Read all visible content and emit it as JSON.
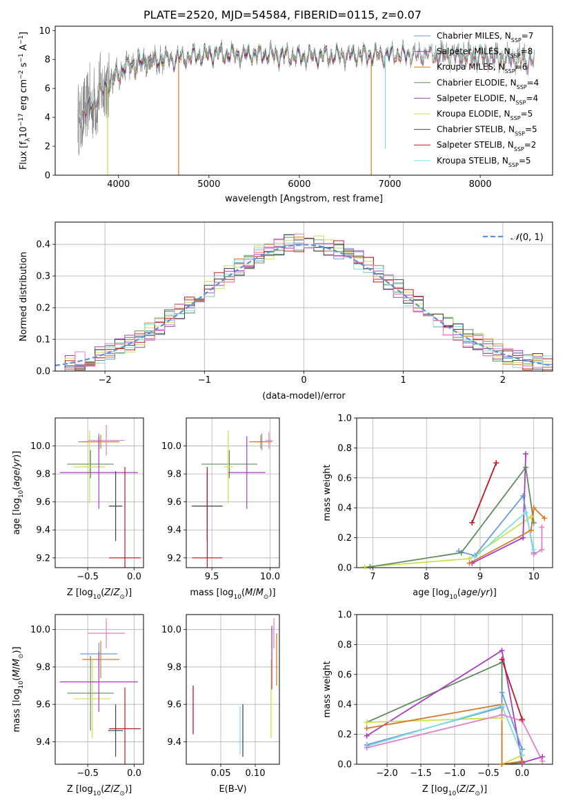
{
  "figure": {
    "title": "PLATE=2520, MJD=54584, FIBERID=0115, z=0.07"
  },
  "colors": {
    "Chabrier MILES": "#6a9bd6",
    "Salpeter MILES": "#a23bb7",
    "Kroupa MILES": "#d9762a",
    "Chabrier ELODIE": "#5f8a5f",
    "Salpeter ELODIE": "#a93bbf",
    "Kroupa ELODIE": "#c8e04a",
    "Chabrier STELIB": "#444444",
    "Salpeter STELIB": "#c0141c",
    "Kroupa STELIB": "#7ee0e0",
    "pink": "#e37fc6",
    "data": "#7f7f7f",
    "normal": "#5b8fd6"
  },
  "chart_data": [
    {
      "id": "spectrum",
      "type": "line",
      "xlabel": "wavelength [Angstrom, rest frame]",
      "ylabel": "Flux [f_λ10^-17 erg cm^-2 s^-1 A^-1]",
      "xlim": [
        3300,
        8800
      ],
      "ylim": [
        0,
        10.3
      ],
      "xticks": [
        4000,
        5000,
        6000,
        7000,
        8000
      ],
      "yticks": [
        0,
        2,
        4,
        6,
        8,
        10
      ],
      "legend_position": "top-right",
      "legend": [
        {
          "base": "Chabrier MILES, N",
          "sub": "SSP",
          "tail": "=7"
        },
        {
          "base": "Salpeter MILES, N",
          "sub": "SSP",
          "tail": "=8"
        },
        {
          "base": "Kroupa MILES, N",
          "sub": "SSP",
          "tail": "=6"
        },
        {
          "base": "Chabrier ELODIE, N",
          "sub": "SSP",
          "tail": "=4"
        },
        {
          "base": "Salpeter ELODIE, N",
          "sub": "SSP",
          "tail": "=4"
        },
        {
          "base": "Kroupa ELODIE, N",
          "sub": "SSP",
          "tail": "=5"
        },
        {
          "base": "Chabrier STELIB, N",
          "sub": "SSP",
          "tail": "=5"
        },
        {
          "base": "Salpeter STELIB, N",
          "sub": "SSP",
          "tail": "=2"
        },
        {
          "base": "Kroupa STELIB, N",
          "sub": "SSP",
          "tail": "=5"
        }
      ],
      "continuum": {
        "x": [
          3550,
          3650,
          3750,
          3850,
          3950,
          4050,
          4150,
          4300,
          4500,
          4700,
          4900,
          5100,
          5300,
          5600,
          6000,
          6500,
          7000,
          7500,
          8000,
          8500,
          8800
        ],
        "y": [
          3.8,
          4.6,
          5.2,
          6.2,
          6.6,
          7.4,
          7.6,
          7.9,
          8.0,
          8.1,
          8.3,
          8.4,
          8.3,
          8.4,
          8.2,
          8.3,
          8.3,
          8.4,
          8.2,
          8.0,
          7.9
        ]
      }
    },
    {
      "id": "residuals",
      "type": "area",
      "xlabel": "(data-model)/error",
      "ylabel": "Normed distribution",
      "xlim": [
        -2.5,
        2.5
      ],
      "ylim": [
        0,
        0.47
      ],
      "xticks": [
        -2,
        -1,
        0,
        1,
        2
      ],
      "yticks": [
        0.0,
        0.1,
        0.2,
        0.3,
        0.4
      ],
      "grid": true,
      "legend_position": "top-right",
      "legend_label": "N(0,1)",
      "bins": [
        -2.5,
        2.5,
        50
      ]
    },
    {
      "id": "age-vs-Z",
      "type": "scatter",
      "xlabel": "Z [log10(Z/Z⊙)]",
      "ylabel": "age [log10(age/yr)]",
      "xlim": [
        -0.85,
        0.1
      ],
      "ylim": [
        9.13,
        10.2
      ],
      "xticks": [
        -0.5,
        0.0
      ],
      "yticks": [
        9.2,
        9.4,
        9.6,
        9.8,
        10.0
      ],
      "grid": true,
      "points": [
        {
          "s": "Chabrier MILES",
          "x": -0.38,
          "y": 10.03,
          "xe": 0.22,
          "ye": 0.06
        },
        {
          "s": "Kroupa MILES",
          "x": -0.36,
          "y": 10.03,
          "xe": 0.2,
          "ye": 0.05
        },
        {
          "s": "pink",
          "x": -0.3,
          "y": 10.04,
          "xe": 0.2,
          "ye": 0.11
        },
        {
          "s": "Chabrier ELODIE",
          "x": -0.47,
          "y": 9.87,
          "xe": 0.25,
          "ye": 0.1
        },
        {
          "s": "Kroupa ELODIE",
          "x": -0.48,
          "y": 9.85,
          "xe": 0.17,
          "ye": 0.26
        },
        {
          "s": "Salpeter ELODIE",
          "x": -0.38,
          "y": 9.81,
          "xe": 0.42,
          "ye": 0.26
        },
        {
          "s": "Kroupa STELIB",
          "x": -0.2,
          "y": 9.57,
          "xe": 0.08,
          "ye": 0.25
        },
        {
          "s": "Chabrier STELIB",
          "x": -0.2,
          "y": 9.57,
          "xe": 0.07,
          "ye": 0.25
        },
        {
          "s": "Salpeter STELIB",
          "x": -0.1,
          "y": 9.2,
          "xe": 0.17,
          "ye": 0.65
        }
      ]
    },
    {
      "id": "age-vs-mass",
      "type": "scatter",
      "xlabel": "mass [log10(M/M⊙)]",
      "xlim": [
        9.28,
        10.08
      ],
      "ylim": [
        9.13,
        10.2
      ],
      "xticks": [
        9.5,
        10.0
      ],
      "yticks": [
        9.2,
        9.4,
        9.6,
        9.8,
        10.0
      ],
      "grid": true,
      "points": [
        {
          "s": "Chabrier MILES",
          "x": 9.93,
          "y": 10.03,
          "xe": 0.08,
          "ye": 0.06
        },
        {
          "s": "Kroupa MILES",
          "x": 9.92,
          "y": 10.03,
          "xe": 0.1,
          "ye": 0.05
        },
        {
          "s": "pink",
          "x": 9.99,
          "y": 10.04,
          "xe": 0.03,
          "ye": 0.06
        },
        {
          "s": "Chabrier ELODIE",
          "x": 9.65,
          "y": 9.87,
          "xe": 0.24,
          "ye": 0.1
        },
        {
          "s": "Kroupa ELODIE",
          "x": 9.64,
          "y": 9.85,
          "xe": 0.04,
          "ye": 0.26
        },
        {
          "s": "Salpeter ELODIE",
          "x": 9.8,
          "y": 9.81,
          "xe": 0.16,
          "ye": 0.26
        },
        {
          "s": "Kroupa STELIB",
          "x": 9.46,
          "y": 9.57,
          "xe": 0.14,
          "ye": 0.25
        },
        {
          "s": "Chabrier STELIB",
          "x": 9.46,
          "y": 9.57,
          "xe": 0.13,
          "ye": 0.25
        },
        {
          "s": "Salpeter STELIB",
          "x": 9.46,
          "y": 9.2,
          "xe": 0.13,
          "ye": 0.65
        }
      ]
    },
    {
      "id": "massweight-vs-age",
      "type": "line",
      "xlabel": "age [log10(age/yr)]",
      "ylabel": "mass weight",
      "xlim": [
        6.7,
        10.35
      ],
      "ylim": [
        0,
        1.0
      ],
      "xticks": [
        7,
        8,
        9,
        10
      ],
      "yticks": [
        0.0,
        0.2,
        0.4,
        0.6,
        0.8,
        1.0
      ],
      "grid": true,
      "series": [
        {
          "s": "Kroupa ELODIE",
          "x": [
            6.85,
            8.8,
            9.95
          ],
          "y": [
            0.005,
            0.06,
            0.34
          ]
        },
        {
          "s": "Chabrier ELODIE",
          "x": [
            6.95,
            8.65,
            9.85,
            10.0
          ],
          "y": [
            0.005,
            0.1,
            0.67,
            0.3
          ]
        },
        {
          "s": "Salpeter ELODIE",
          "x": [
            8.85,
            9.8,
            9.85
          ],
          "y": [
            0.03,
            0.2,
            0.76
          ]
        },
        {
          "s": "Kroupa MILES",
          "x": [
            8.8,
            9.95,
            10.0,
            10.2
          ],
          "y": [
            0.03,
            0.25,
            0.4,
            0.33
          ]
        },
        {
          "s": "Chabrier MILES",
          "x": [
            8.6,
            8.9,
            9.8,
            10.0
          ],
          "y": [
            0.11,
            0.08,
            0.48,
            0.1
          ]
        },
        {
          "s": "Kroupa STELIB",
          "x": [
            8.9,
            9.85,
            10.0
          ],
          "y": [
            0.07,
            0.37,
            0.12
          ]
        },
        {
          "s": "Salpeter STELIB",
          "x": [
            8.85,
            9.3
          ],
          "y": [
            0.3,
            0.7
          ]
        },
        {
          "s": "pink",
          "x": [
            10.0,
            10.15,
            10.15
          ],
          "y": [
            0.09,
            0.12,
            0.27
          ]
        }
      ]
    },
    {
      "id": "mass-vs-Z",
      "type": "scatter",
      "xlabel": "Z [log10(Z/Z⊙)]",
      "ylabel": "mass [log10(M/M⊙)]",
      "xlim": [
        -0.85,
        0.1
      ],
      "ylim": [
        9.28,
        10.08
      ],
      "xticks": [
        -0.5,
        0.0
      ],
      "yticks": [
        9.4,
        9.6,
        9.8,
        10.0
      ],
      "grid": true,
      "points": [
        {
          "s": "Chabrier MILES",
          "x": -0.38,
          "y": 9.87,
          "xe": 0.2,
          "ye": 0.06
        },
        {
          "s": "Kroupa MILES",
          "x": -0.36,
          "y": 9.84,
          "xe": 0.2,
          "ye": 0.1
        },
        {
          "s": "pink",
          "x": -0.3,
          "y": 9.98,
          "xe": 0.2,
          "ye": 0.08
        },
        {
          "s": "Chabrier ELODIE",
          "x": -0.47,
          "y": 9.66,
          "xe": 0.25,
          "ye": 0.2
        },
        {
          "s": "Kroupa ELODIE",
          "x": -0.45,
          "y": 9.63,
          "xe": 0.2,
          "ye": 0.21
        },
        {
          "s": "Salpeter ELODIE",
          "x": -0.38,
          "y": 9.72,
          "xe": 0.42,
          "ye": 0.16
        },
        {
          "s": "Kroupa STELIB",
          "x": -0.2,
          "y": 9.46,
          "xe": 0.08,
          "ye": 0.13
        },
        {
          "s": "Chabrier STELIB",
          "x": -0.2,
          "y": 9.46,
          "xe": 0.08,
          "ye": 0.14
        },
        {
          "s": "Salpeter STELIB",
          "x": -0.1,
          "y": 9.47,
          "xe": 0.17,
          "ye": 0.22
        }
      ]
    },
    {
      "id": "mass-vs-EBV",
      "type": "scatter",
      "xlabel": "E(B-V)",
      "xlim": [
        0.0,
        0.135
      ],
      "ylim": [
        9.28,
        10.08
      ],
      "xticks": [
        0.05,
        0.1
      ],
      "yticks": [
        9.4,
        9.6,
        9.8,
        10.0
      ],
      "grid": true,
      "points": [
        {
          "s": "Salpeter STELIB",
          "x": 0.01,
          "y": 9.57,
          "xe": 0,
          "ye": 0.13
        },
        {
          "s": "Kroupa STELIB",
          "x": 0.078,
          "y": 9.46,
          "xe": 0,
          "ye": 0.13
        },
        {
          "s": "Chabrier STELIB",
          "x": 0.082,
          "y": 9.46,
          "xe": 0,
          "ye": 0.14
        },
        {
          "s": "Kroupa ELODIE",
          "x": 0.123,
          "y": 9.63,
          "xe": 0,
          "ye": 0.21
        },
        {
          "s": "Salpeter ELODIE",
          "x": 0.124,
          "y": 9.85,
          "xe": 0,
          "ye": 0.17
        },
        {
          "s": "pink",
          "x": 0.127,
          "y": 9.98,
          "xe": 0,
          "ye": 0.08
        },
        {
          "s": "Kroupa MILES",
          "x": 0.131,
          "y": 9.84,
          "xe": 0,
          "ye": 0.14
        }
      ]
    },
    {
      "id": "massweight-vs-Z",
      "type": "line",
      "xlabel": "Z [log10(Z/Z⊙)]",
      "ylabel": "mass weight",
      "xlim": [
        -2.45,
        0.45
      ],
      "ylim": [
        0,
        1.0
      ],
      "xticks": [
        -2.0,
        -1.5,
        -1.0,
        -0.5,
        0.0
      ],
      "yticks": [
        0.0,
        0.2,
        0.4,
        0.6,
        0.8,
        1.0
      ],
      "grid": true,
      "series": [
        {
          "s": "Chabrier ELODIE",
          "x": [
            -2.3,
            -0.3,
            -0.3,
            0.0
          ],
          "y": [
            0.28,
            0.68,
            0.0,
            0.01
          ]
        },
        {
          "s": "Salpeter ELODIE",
          "x": [
            -2.3,
            -0.3,
            0.0,
            0.3
          ],
          "y": [
            0.19,
            0.76,
            0.01,
            0.05
          ]
        },
        {
          "s": "Kroupa ELODIE",
          "x": [
            -2.3,
            -0.3,
            -0.3,
            0.0
          ],
          "y": [
            0.28,
            0.31,
            0.0,
            0.06
          ]
        },
        {
          "s": "Kroupa MILES",
          "x": [
            -2.3,
            -0.3,
            -0.3,
            0.0
          ],
          "y": [
            0.24,
            0.4,
            0.0,
            0.02
          ]
        },
        {
          "s": "Chabrier MILES",
          "x": [
            -2.3,
            -0.3,
            -0.3,
            0.0
          ],
          "y": [
            0.13,
            0.38,
            0.48,
            0.1
          ]
        },
        {
          "s": "Kroupa STELIB",
          "x": [
            -2.3,
            -0.3,
            0.0
          ],
          "y": [
            0.12,
            0.39,
            0.06
          ]
        },
        {
          "s": "pink",
          "x": [
            -2.3,
            -0.3,
            0.0,
            0.3
          ],
          "y": [
            0.11,
            0.33,
            0.29,
            0.02
          ]
        },
        {
          "s": "Salpeter STELIB",
          "x": [
            -0.3,
            0.0
          ],
          "y": [
            0.7,
            0.3
          ]
        }
      ]
    }
  ]
}
